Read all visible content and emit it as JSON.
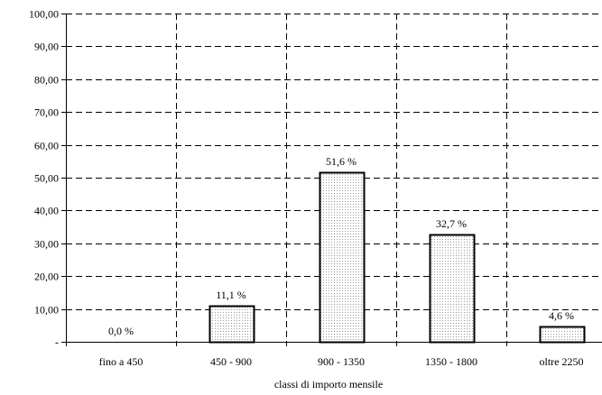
{
  "chart_data": {
    "type": "bar",
    "title": "",
    "xlabel": "classi di importo mensile",
    "ylabel": "",
    "ylim": [
      0,
      100
    ],
    "y_ticks": [
      {
        "value": 0,
        "label": "-"
      },
      {
        "value": 10,
        "label": "10,00"
      },
      {
        "value": 20,
        "label": "20,00"
      },
      {
        "value": 30,
        "label": "30,00"
      },
      {
        "value": 40,
        "label": "40,00"
      },
      {
        "value": 50,
        "label": "50,00"
      },
      {
        "value": 60,
        "label": "60,00"
      },
      {
        "value": 70,
        "label": "70,00"
      },
      {
        "value": 80,
        "label": "80,00"
      },
      {
        "value": 90,
        "label": "90,00"
      },
      {
        "value": 100,
        "label": "100,00"
      }
    ],
    "categories": [
      "fino a  450",
      "450 - 900",
      "900 - 1350",
      "1350 - 1800",
      "oltre  2250"
    ],
    "values": [
      0.0,
      11.1,
      51.6,
      32.7,
      4.6
    ],
    "data_labels": [
      "0,0 %",
      "11,1 %",
      "51,6 %",
      "32,7 %",
      "4,6 %"
    ],
    "grid": true,
    "grid_style": "dashed",
    "bar_fill": "dotted",
    "colors": {
      "bar_outline": "#000000",
      "bar_dots": "#9a9a9a",
      "grid": "#000000",
      "background": "#ffffff"
    }
  }
}
